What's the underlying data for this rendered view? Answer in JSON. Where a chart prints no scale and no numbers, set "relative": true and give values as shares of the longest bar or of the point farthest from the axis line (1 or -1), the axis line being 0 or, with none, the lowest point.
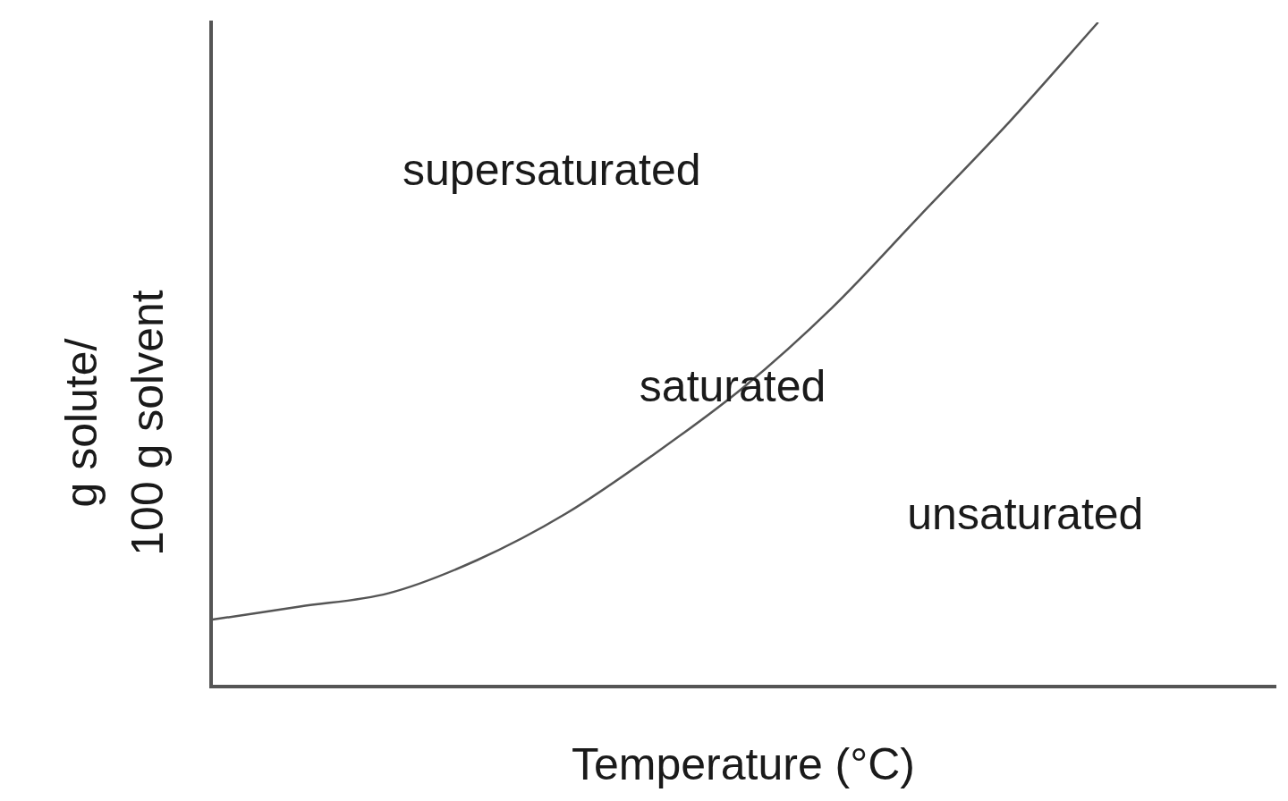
{
  "chart_data": {
    "type": "line",
    "relative": true,
    "xlabel": "Temperature (°C)",
    "ylabel": "g solute/\n100 g solvent",
    "categories": [
      null,
      null,
      null,
      null,
      null,
      null,
      null,
      null,
      null,
      null,
      null,
      null,
      null
    ],
    "series": [
      {
        "color": "#555555",
        "values": [
          0.1,
          0.12,
          0.14,
          0.19,
          0.26,
          0.35,
          0.45,
          0.57,
          0.71,
          0.85,
          1,
          null,
          null
        ]
      }
    ],
    "annotations": [
      "supersaturated",
      "saturated",
      "unsaturated"
    ]
  }
}
